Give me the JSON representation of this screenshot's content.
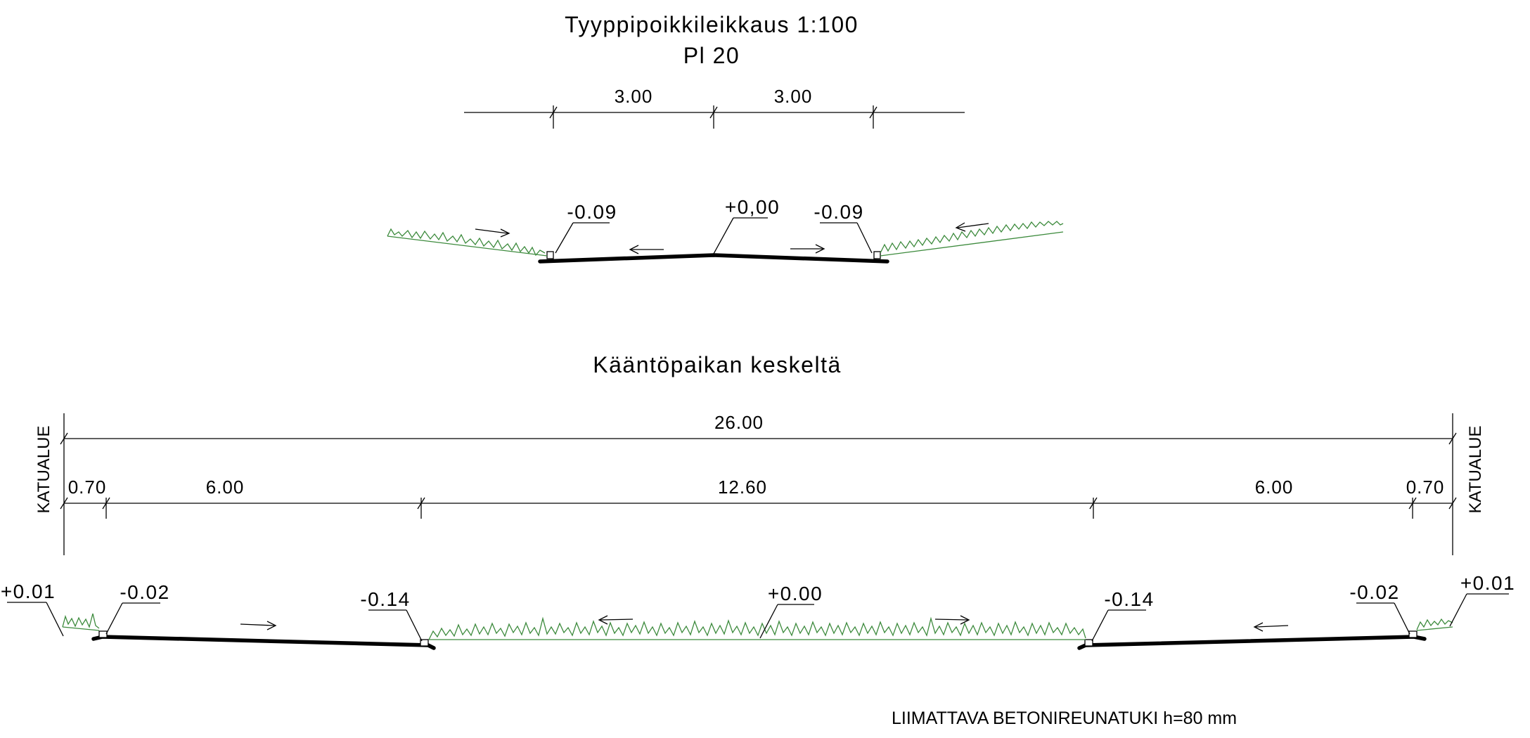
{
  "section1": {
    "title_line1": "Tyyppipoikkileikkaus 1:100",
    "title_line2": "Pl 20",
    "dims": [
      "3.00",
      "3.00"
    ],
    "levels": {
      "left": "-0.09",
      "center": "+0,00",
      "right": "-0.09"
    }
  },
  "section2": {
    "title": "Kääntöpaikan keskeltä",
    "total_dim": "26.00",
    "dims": [
      "0.70",
      "6.00",
      "12.60",
      "6.00",
      "0.70"
    ],
    "side_label": "KATUALUE",
    "levels": {
      "far_left": "+0.01",
      "left_curb": "-0.02",
      "left_inner": "-0.14",
      "center": "+0.00",
      "right_inner": "-0.14",
      "right_curb": "-0.02",
      "far_right": "+0.01"
    }
  },
  "note": "LIIMATTAVA BETONIREUNATUKI h=80 mm"
}
